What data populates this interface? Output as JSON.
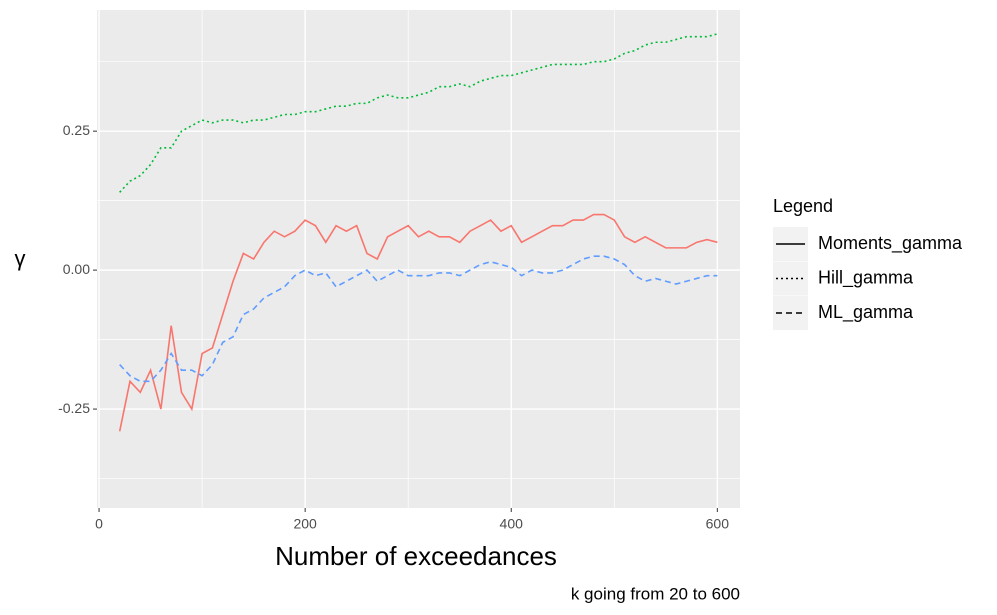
{
  "chart_data": {
    "type": "line",
    "x_label": "Number of exceedances",
    "y_label": "γ",
    "caption": "k going from 20 to 600",
    "legend_title": "Legend",
    "xlim": [
      -2,
      622
    ],
    "ylim": [
      -0.428,
      0.468
    ],
    "xticks": [
      0,
      200,
      400,
      600
    ],
    "xminor": [
      100,
      300,
      500
    ],
    "yticks": [
      -0.25,
      {
        "value": 0,
        "label": "0.00"
      },
      0.25
    ],
    "yminor": [
      -0.375,
      -0.125,
      0.125,
      0.375
    ],
    "grid": true,
    "x": [
      20,
      30,
      40,
      50,
      60,
      70,
      80,
      90,
      100,
      110,
      120,
      130,
      140,
      150,
      160,
      170,
      180,
      190,
      200,
      210,
      220,
      230,
      240,
      250,
      260,
      270,
      280,
      290,
      300,
      310,
      320,
      330,
      340,
      350,
      360,
      370,
      380,
      390,
      400,
      410,
      420,
      430,
      440,
      450,
      460,
      470,
      480,
      490,
      500,
      510,
      520,
      530,
      540,
      550,
      560,
      570,
      580,
      590,
      600
    ],
    "series": [
      {
        "name": "Moments_gamma",
        "color": "#F8766D",
        "linetype": "solid",
        "values": [
          -0.29,
          -0.2,
          -0.22,
          -0.18,
          -0.25,
          -0.1,
          -0.22,
          -0.25,
          -0.15,
          -0.14,
          -0.08,
          -0.02,
          0.03,
          0.02,
          0.05,
          0.07,
          0.06,
          0.07,
          0.09,
          0.08,
          0.05,
          0.08,
          0.07,
          0.08,
          0.03,
          0.02,
          0.06,
          0.07,
          0.08,
          0.06,
          0.07,
          0.06,
          0.06,
          0.05,
          0.07,
          0.08,
          0.09,
          0.07,
          0.08,
          0.05,
          0.06,
          0.07,
          0.08,
          0.08,
          0.09,
          0.09,
          0.1,
          0.1,
          0.09,
          0.06,
          0.05,
          0.06,
          0.05,
          0.04,
          0.04,
          0.04,
          0.05,
          0.055,
          0.05
        ]
      },
      {
        "name": "Hill_gamma",
        "color": "#00BA38",
        "linetype": "dotted",
        "values": [
          0.14,
          0.16,
          0.17,
          0.19,
          0.22,
          0.22,
          0.25,
          0.26,
          0.27,
          0.265,
          0.27,
          0.27,
          0.265,
          0.27,
          0.27,
          0.275,
          0.28,
          0.28,
          0.285,
          0.285,
          0.29,
          0.295,
          0.295,
          0.3,
          0.3,
          0.31,
          0.315,
          0.31,
          0.31,
          0.315,
          0.32,
          0.33,
          0.33,
          0.335,
          0.33,
          0.34,
          0.345,
          0.35,
          0.35,
          0.355,
          0.36,
          0.365,
          0.37,
          0.37,
          0.37,
          0.37,
          0.375,
          0.375,
          0.38,
          0.39,
          0.395,
          0.405,
          0.41,
          0.41,
          0.415,
          0.42,
          0.42,
          0.42,
          0.425
        ]
      },
      {
        "name": "ML_gamma",
        "color": "#619CFF",
        "linetype": "dashed",
        "values": [
          -0.17,
          -0.19,
          -0.2,
          -0.2,
          -0.18,
          -0.15,
          -0.18,
          -0.18,
          -0.19,
          -0.17,
          -0.13,
          -0.12,
          -0.08,
          -0.07,
          -0.05,
          -0.04,
          -0.03,
          -0.01,
          0,
          -0.01,
          -0.005,
          -0.03,
          -0.02,
          -0.01,
          0,
          -0.02,
          -0.01,
          0,
          -0.01,
          -0.01,
          -0.01,
          -0.005,
          -0.005,
          -0.01,
          0,
          0.01,
          0.015,
          0.01,
          0.005,
          -0.01,
          0,
          -0.005,
          -0.005,
          0,
          0.01,
          0.02,
          0.025,
          0.025,
          0.02,
          0.01,
          -0.01,
          -0.02,
          -0.015,
          -0.02,
          -0.025,
          -0.02,
          -0.015,
          -0.01,
          -0.01
        ]
      }
    ]
  }
}
